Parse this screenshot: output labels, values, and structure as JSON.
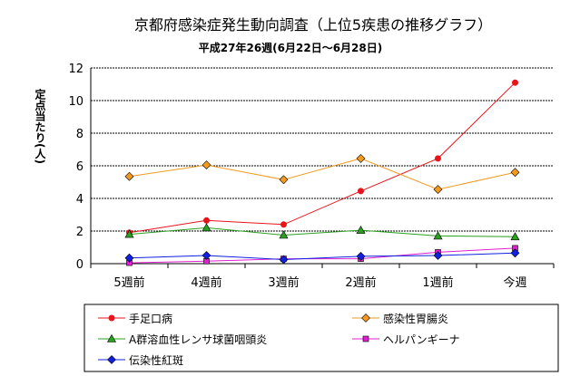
{
  "chart_data": {
    "type": "line",
    "title": "京都府感染症発生動向調査（上位5疾患の推移グラフ）",
    "subtitle": "平成27年26週(6月22日～6月28日)",
    "ylabel": "定点当たり(人)",
    "xlabel": "",
    "categories": [
      "5週前",
      "4週前",
      "3週前",
      "2週前",
      "1週前",
      "今週"
    ],
    "ylim": [
      0,
      12
    ],
    "yticks": [
      0,
      2,
      4,
      6,
      8,
      10,
      12
    ],
    "grid": true,
    "legend_position": "bottom",
    "series": [
      {
        "name": "手足口病",
        "values": [
          1.9,
          2.65,
          2.4,
          4.45,
          6.45,
          11.1
        ],
        "color": "#e8141b",
        "marker": "circle"
      },
      {
        "name": "感染性胃腸炎",
        "values": [
          5.35,
          6.05,
          5.15,
          6.45,
          4.55,
          5.6
        ],
        "color": "#f39a1e",
        "marker": "diamond"
      },
      {
        "name": "A群溶血性レンサ球菌咽頭炎",
        "values": [
          1.8,
          2.2,
          1.75,
          2.05,
          1.7,
          1.65
        ],
        "color": "#2aa020",
        "marker": "triangle"
      },
      {
        "name": "ヘルパンギーナ",
        "values": [
          0.05,
          0.15,
          0.3,
          0.3,
          0.7,
          0.95
        ],
        "color": "#e020d0",
        "marker": "square"
      },
      {
        "name": "伝染性紅斑",
        "values": [
          0.35,
          0.5,
          0.25,
          0.45,
          0.5,
          0.65
        ],
        "color": "#1020e0",
        "marker": "diamond"
      }
    ]
  }
}
